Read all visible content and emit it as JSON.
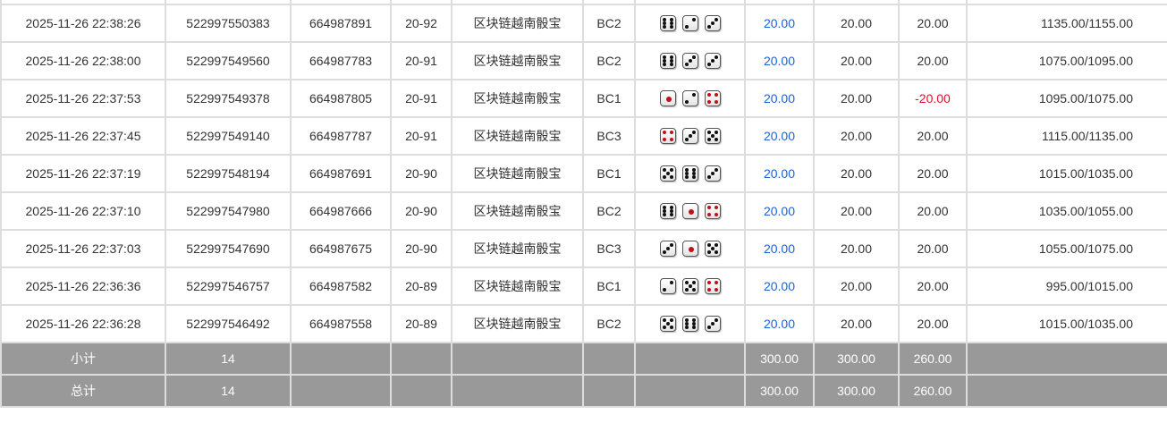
{
  "rows": [
    {
      "time": "2025-11-26 22:38:26",
      "id1": "522997550383",
      "id2": "664987891",
      "round": "20-92",
      "game": "区块链越南骰宝",
      "table": "BC2",
      "dice": [
        6,
        2,
        3
      ],
      "bet": "20.00",
      "valid": "20.00",
      "win": "20.00",
      "balance": "1135.00/1155.00"
    },
    {
      "time": "2025-11-26 22:38:00",
      "id1": "522997549560",
      "id2": "664987783",
      "round": "20-91",
      "game": "区块链越南骰宝",
      "table": "BC2",
      "dice": [
        6,
        3,
        3
      ],
      "bet": "20.00",
      "valid": "20.00",
      "win": "20.00",
      "balance": "1075.00/1095.00"
    },
    {
      "time": "2025-11-26 22:37:53",
      "id1": "522997549378",
      "id2": "664987805",
      "round": "20-91",
      "game": "区块链越南骰宝",
      "table": "BC1",
      "dice": [
        1,
        2,
        4
      ],
      "bet": "20.00",
      "valid": "20.00",
      "win": "-20.00",
      "balance": "1095.00/1075.00"
    },
    {
      "time": "2025-11-26 22:37:45",
      "id1": "522997549140",
      "id2": "664987787",
      "round": "20-91",
      "game": "区块链越南骰宝",
      "table": "BC3",
      "dice": [
        4,
        3,
        5
      ],
      "bet": "20.00",
      "valid": "20.00",
      "win": "20.00",
      "balance": "1115.00/1135.00"
    },
    {
      "time": "2025-11-26 22:37:19",
      "id1": "522997548194",
      "id2": "664987691",
      "round": "20-90",
      "game": "区块链越南骰宝",
      "table": "BC1",
      "dice": [
        5,
        6,
        3
      ],
      "bet": "20.00",
      "valid": "20.00",
      "win": "20.00",
      "balance": "1015.00/1035.00"
    },
    {
      "time": "2025-11-26 22:37:10",
      "id1": "522997547980",
      "id2": "664987666",
      "round": "20-90",
      "game": "区块链越南骰宝",
      "table": "BC2",
      "dice": [
        6,
        1,
        4
      ],
      "bet": "20.00",
      "valid": "20.00",
      "win": "20.00",
      "balance": "1035.00/1055.00"
    },
    {
      "time": "2025-11-26 22:37:03",
      "id1": "522997547690",
      "id2": "664987675",
      "round": "20-90",
      "game": "区块链越南骰宝",
      "table": "BC3",
      "dice": [
        3,
        1,
        5
      ],
      "bet": "20.00",
      "valid": "20.00",
      "win": "20.00",
      "balance": "1055.00/1075.00"
    },
    {
      "time": "2025-11-26 22:36:36",
      "id1": "522997546757",
      "id2": "664987582",
      "round": "20-89",
      "game": "区块链越南骰宝",
      "table": "BC1",
      "dice": [
        2,
        5,
        4
      ],
      "bet": "20.00",
      "valid": "20.00",
      "win": "20.00",
      "balance": "995.00/1015.00"
    },
    {
      "time": "2025-11-26 22:36:28",
      "id1": "522997546492",
      "id2": "664987558",
      "round": "20-89",
      "game": "区块链越南骰宝",
      "table": "BC2",
      "dice": [
        5,
        6,
        3
      ],
      "bet": "20.00",
      "valid": "20.00",
      "win": "20.00",
      "balance": "1015.00/1035.00"
    }
  ],
  "subtotal": {
    "label": "小计",
    "count": "14",
    "bet": "300.00",
    "valid": "300.00",
    "win": "260.00"
  },
  "total": {
    "label": "总计",
    "count": "14",
    "bet": "300.00",
    "valid": "300.00",
    "win": "260.00"
  },
  "colors": {
    "bet": "#1a64d6",
    "loss": "#e0102a",
    "summary_bg": "#999999"
  }
}
